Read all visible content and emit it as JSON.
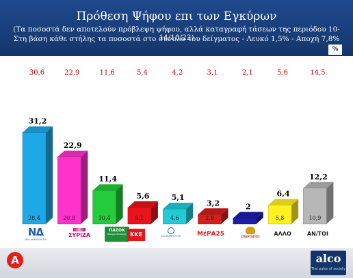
{
  "header": {
    "title": "Πρόθεση Ψήφου επι των Εγκύρων",
    "subtitle1": "(Τα ποσοστά δεν αποτελούν πρόβλεψη ψήφου, αλλά καταγραφή τάσεων της περιόδου  10-14/10/22)",
    "subtitle2": "Στη βάση κάθε στήλης τα ποσοστά στο σύνολο του δείγματος - Λευκό 1,5% - Αποχή 7,8%",
    "unit_badge": "%"
  },
  "logos": {
    "nd": "ΝΔ",
    "nd_sub": "ΝΕΑ ΔΗΜΟΚΡΑΤΙΑ",
    "syriza": "ΣΥΡΙΖΑ",
    "pasok": "ΠΑΣΟΚ",
    "pasok_sub": "Κίνημα Αλλαγής",
    "kke": "ΚΚΕ",
    "elliniki": "ΕΛΛΗΝΙΚΗ ΛΥΣΗ",
    "mera": "ΜέΡΑ25",
    "spartiates": "ΣΠΑΡΤΙΑΤΕΣ",
    "alco_name": "alco",
    "alco_tag": "The pulse of society",
    "alpha": "A"
  },
  "colors": {
    "header": "#1f4a8e",
    "top_value_text": "#c00000",
    "nd": "#1fa8e8",
    "syriza": "#ff33cc",
    "pasok": "#22cc3a",
    "kke": "#e8141c",
    "elliniki": "#22ccd6",
    "mera": "#d51f1f",
    "spartiates": "#1c1ca8",
    "allo": "#fff21e",
    "antoi": "#b7b7b7"
  },
  "chart_data": {
    "type": "bar",
    "title": "Πρόθεση Ψήφου επι των Εγκύρων",
    "xlabel": "",
    "ylabel": "",
    "ylim": [
      0,
      35
    ],
    "grid": false,
    "legend": "none",
    "categories": [
      "ΝΔ",
      "ΣΥΡΙΖΑ",
      "ΠΑΣΟΚ",
      "ΚΚΕ",
      "ΕΛΛΗΝΙΚΗ ΛΥΣΗ",
      "ΜέΡΑ25",
      "ΣΠΑΡΤΙΑΤΕΣ",
      "ΑΛΛΟ",
      "ΑΝ/ΤΟΙ"
    ],
    "category_labels_shown": [
      "",
      "",
      "",
      "",
      "",
      "",
      "",
      "ΑΛΛΟ",
      "ΑΝ/ΤΟΙ"
    ],
    "series": [
      {
        "values": [
          31.2,
          22.9,
          11.4,
          5.6,
          5.1,
          3.2,
          2,
          6.4,
          12.2
        ],
        "labels": [
          "31,2",
          "22,9",
          "11,4",
          "5,6",
          "5,1",
          "3,2",
          "2",
          "6,4",
          "12,2"
        ]
      },
      {
        "values": [
          28.4,
          20.8,
          10.4,
          5.1,
          4.6,
          2.9,
          1.8,
          5.8,
          10.9
        ],
        "labels": [
          "28,4",
          "20,8",
          "10,4",
          "5,1",
          "4,6",
          "2,9",
          "1,8",
          "5,8",
          "10,9"
        ]
      },
      {
        "values": [
          30.6,
          22.9,
          11.6,
          5.4,
          4.2,
          3.1,
          2.1,
          5.6,
          14.5
        ],
        "labels": [
          "30,6",
          "22,9",
          "11,6",
          "5,4",
          "4,2",
          "3,1",
          "2,1",
          "5,6",
          "14,5"
        ]
      }
    ]
  }
}
